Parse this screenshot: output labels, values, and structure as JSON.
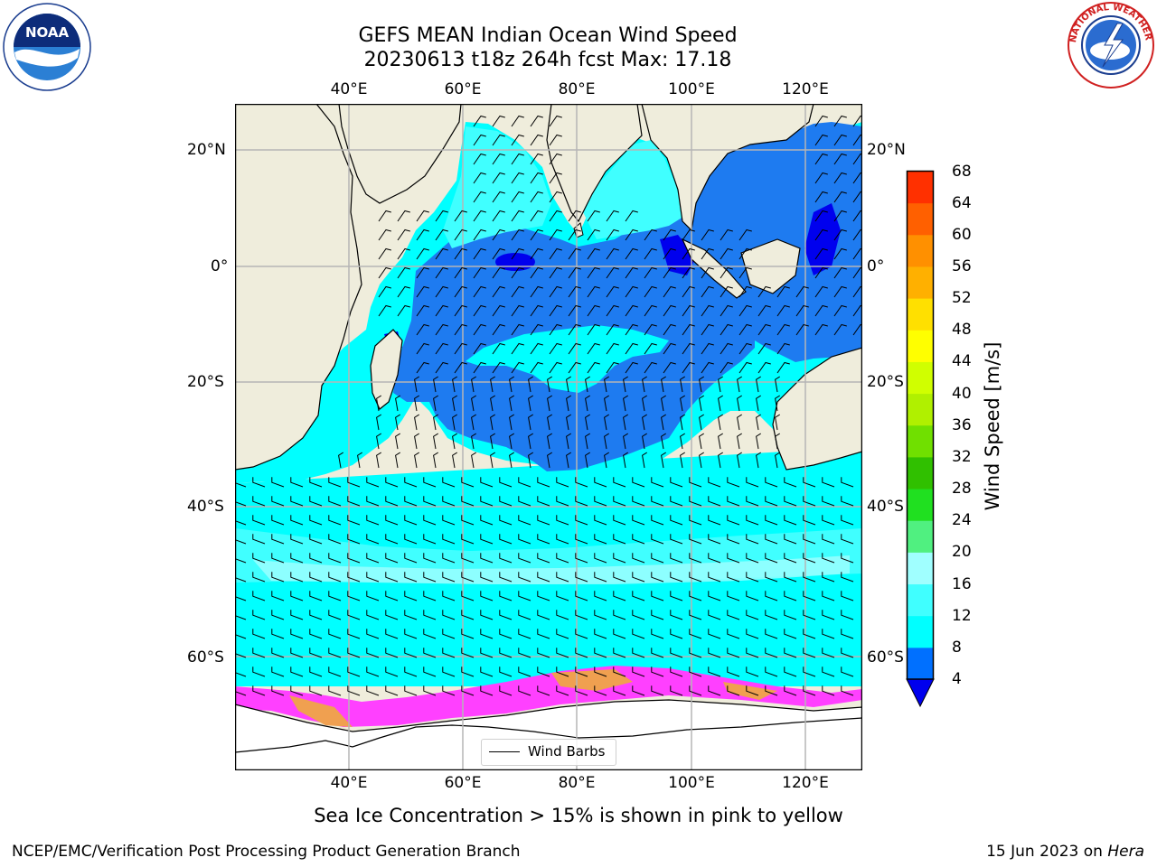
{
  "title_line1": "GEFS MEAN Indian Ocean Wind Speed",
  "title_line2": "20230613 t18z 264h fcst   Max: 17.18",
  "lon_ticks": [
    "40°E",
    "60°E",
    "80°E",
    "100°E",
    "120°E"
  ],
  "lat_ticks": [
    "20°N",
    "0°",
    "20°S",
    "40°S",
    "60°S"
  ],
  "colorbar": {
    "label": "Wind Speed [m/s]",
    "ticks": [
      "4",
      "8",
      "12",
      "16",
      "20",
      "24",
      "28",
      "32",
      "36",
      "40",
      "44",
      "48",
      "52",
      "56",
      "60",
      "64",
      "68"
    ],
    "colors": [
      "#0070ff",
      "#00ffff",
      "#40ffff",
      "#a0ffff",
      "#50f080",
      "#20e020",
      "#30c000",
      "#70e000",
      "#b0f000",
      "#d0ff00",
      "#ffff00",
      "#ffe000",
      "#ffb000",
      "#ff9000",
      "#ff6000",
      "#ff3000",
      "#ff0000"
    ],
    "below_color": "#0000ee"
  },
  "legend": {
    "label": "Wind Barbs"
  },
  "footnote": "Sea Ice Concentration > 15% is shown in pink to yellow",
  "credit": "NCEP/EMC/Verification Post Processing Product Generation Branch",
  "date_prefix": "15 Jun 2023 on ",
  "host": "Hera",
  "logos": {
    "noaa_text": "NOAA",
    "nws_text": "NATIONAL WEATHER SERVICE"
  },
  "colors": {
    "land": "#efeddc",
    "grid": "#b5b5b5",
    "ice_pink": "#ff40ff",
    "ice_orange": "#f0a050"
  }
}
